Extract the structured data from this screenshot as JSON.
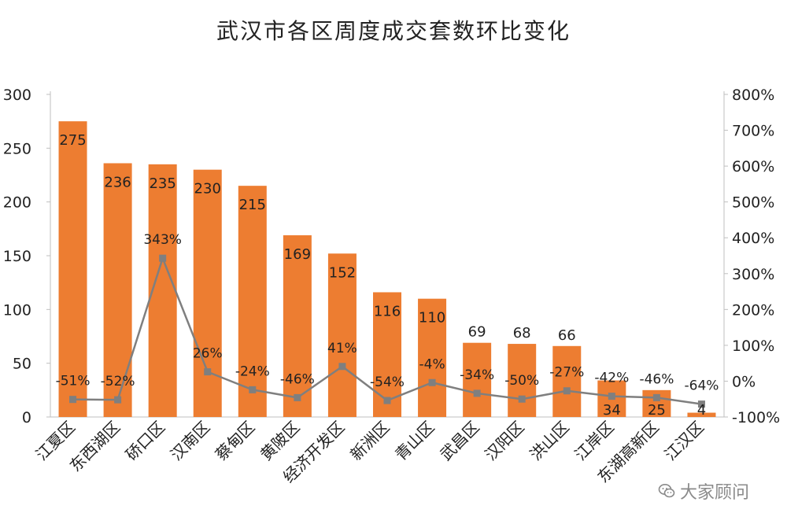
{
  "chart_data": {
    "type": "bar",
    "title": "武汉市各区周度成交套数环比变化",
    "categories": [
      "江夏区",
      "东西湖区",
      "硚口区",
      "汉南区",
      "蔡甸区",
      "黄陂区",
      "经济开发区",
      "新洲区",
      "青山区",
      "武昌区",
      "汉阳区",
      "洪山区",
      "江岸区",
      "东湖高新区",
      "江汉区"
    ],
    "series": [
      {
        "type": "bar",
        "axis": "left",
        "values": [
          275,
          236,
          235,
          230,
          215,
          169,
          152,
          116,
          110,
          69,
          68,
          66,
          34,
          25,
          4
        ],
        "labels": [
          "275",
          "236",
          "235",
          "230",
          "215",
          "169",
          "152",
          "116",
          "110",
          "69",
          "68",
          "66",
          "34",
          "25",
          "4"
        ],
        "color": "#ED7D31"
      },
      {
        "type": "line",
        "axis": "right",
        "values": [
          -51,
          -52,
          343,
          26,
          -24,
          -46,
          41,
          -54,
          -4,
          -34,
          -50,
          -27,
          -42,
          -46,
          -64
        ],
        "labels": [
          "-51%",
          "-52%",
          "343%",
          "26%",
          "-24%",
          "-46%",
          "41%",
          "-54%",
          "-4%",
          "-34%",
          "-50%",
          "-27%",
          "-42%",
          "-46%",
          "-64%"
        ],
        "color": "#7F7F7F"
      }
    ],
    "y_left": {
      "min": 0,
      "max": 300,
      "ticks": [
        "0",
        "50",
        "100",
        "150",
        "200",
        "250",
        "300"
      ]
    },
    "y_right": {
      "min": -100,
      "max": 800,
      "ticks": [
        "-100%",
        "0%",
        "100%",
        "200%",
        "300%",
        "400%",
        "500%",
        "600%",
        "700%",
        "800%"
      ]
    },
    "grid": false,
    "legend": false
  },
  "watermark": {
    "text": "大家顾问",
    "icon": "wechat-icon"
  }
}
